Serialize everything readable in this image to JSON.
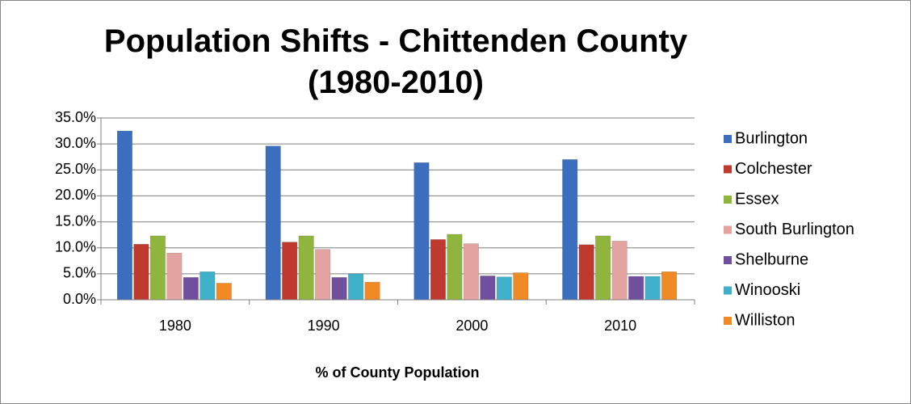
{
  "chart_data": {
    "type": "bar",
    "title": "Population Shifts - Chittenden County (1980-2010)",
    "x_label": "% of County Population",
    "categories": [
      "1980",
      "1990",
      "2000",
      "2010"
    ],
    "series": [
      {
        "name": "Burlington",
        "color": "#3c6ebf",
        "values": [
          32.5,
          29.6,
          26.4,
          27.0
        ]
      },
      {
        "name": "Colchester",
        "color": "#c0392f",
        "values": [
          10.7,
          11.1,
          11.6,
          10.6
        ]
      },
      {
        "name": "Essex",
        "color": "#8fb53f",
        "values": [
          12.3,
          12.3,
          12.6,
          12.3
        ]
      },
      {
        "name": "South Burlington",
        "color": "#e3a3a0",
        "values": [
          9.0,
          9.7,
          10.8,
          11.3
        ]
      },
      {
        "name": "Shelburne",
        "color": "#6f4f9e",
        "values": [
          4.3,
          4.3,
          4.6,
          4.5
        ]
      },
      {
        "name": "Winooski",
        "color": "#3fb0c9",
        "values": [
          5.4,
          5.0,
          4.4,
          4.5
        ]
      },
      {
        "name": "Williston",
        "color": "#f08a24",
        "values": [
          3.2,
          3.4,
          5.2,
          5.4
        ]
      }
    ],
    "ylim": [
      0,
      35
    ],
    "yticks": [
      {
        "value": 0,
        "label": "0.0%"
      },
      {
        "value": 5,
        "label": "5.0%"
      },
      {
        "value": 10,
        "label": "10.0%"
      },
      {
        "value": 15,
        "label": "15.0%"
      },
      {
        "value": 20,
        "label": "20.0%"
      },
      {
        "value": 25,
        "label": "25.0%"
      },
      {
        "value": 30,
        "label": "30.0%"
      },
      {
        "value": 35,
        "label": "35.0%"
      }
    ],
    "grid": true,
    "legend": "right"
  }
}
